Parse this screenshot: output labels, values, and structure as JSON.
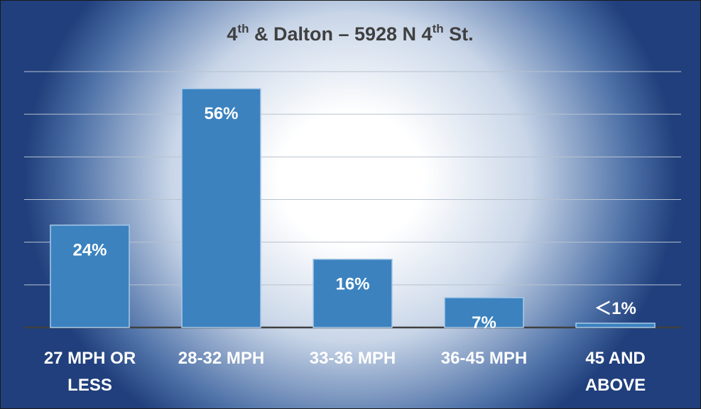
{
  "chart_data": {
    "type": "bar",
    "title_parts": [
      "4",
      "th",
      " & Dalton – 5928 N 4",
      "th",
      " St."
    ],
    "categories": [
      [
        "27 MPH OR",
        "LESS"
      ],
      [
        "28-32 MPH"
      ],
      [
        "33-36 MPH"
      ],
      [
        "36-45 MPH"
      ],
      [
        "45 AND",
        "ABOVE"
      ]
    ],
    "values": [
      24,
      56,
      16,
      7,
      1
    ],
    "value_labels": [
      "24%",
      "56%",
      "16%",
      "7%",
      "＜1%"
    ],
    "ylim": [
      0,
      60
    ],
    "grid": true,
    "bar_color": "#3b82bf",
    "bar_edge_color": "#a9c9e8",
    "gridline_color": "#b7c2cf",
    "axis_color": "#404040"
  }
}
